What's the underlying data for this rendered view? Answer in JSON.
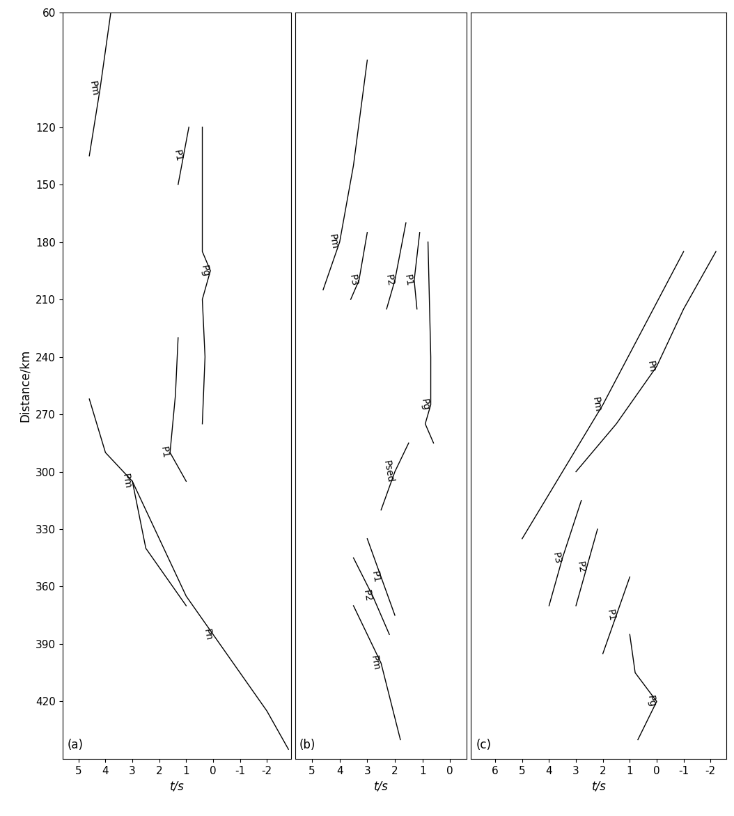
{
  "chart_data": [
    {
      "type": "line",
      "title": "(a)",
      "xlabel": "t/s",
      "ylabel": "Distance/km",
      "xlim": [
        5.6,
        -2.9
      ],
      "ylim": [
        450,
        60
      ],
      "xticks": [
        5,
        4,
        3,
        2,
        1,
        0,
        -1,
        -2
      ],
      "yticks": [
        60,
        120,
        150,
        180,
        210,
        240,
        270,
        300,
        330,
        360,
        390,
        420
      ],
      "tick_labels": true,
      "color": "#000000",
      "series": [
        {
          "name": "Pm",
          "x": [
            3.8,
            4.2,
            4.6
          ],
          "values": [
            60,
            100,
            135
          ]
        },
        {
          "name": "P1",
          "x": [
            0.9,
            1.1,
            1.3
          ],
          "values": [
            120,
            135,
            150
          ]
        },
        {
          "name": "Pg",
          "x": [
            0.4,
            0.4,
            0.4,
            0.1,
            0.4,
            0.3,
            0.4
          ],
          "values": [
            120,
            160,
            185,
            195,
            210,
            240,
            275
          ]
        },
        {
          "name": "P1",
          "x": [
            1.3,
            1.4,
            1.6,
            1.0
          ],
          "values": [
            230,
            260,
            290,
            305
          ]
        },
        {
          "name": "Pm",
          "x": [
            4.6,
            4.0,
            3.0,
            2.5,
            1.0
          ],
          "values": [
            262,
            290,
            305,
            340,
            370
          ]
        },
        {
          "name": "Pn",
          "x": [
            3.0,
            2.0,
            1.0,
            0.0,
            -1.0,
            -2.0,
            -2.8
          ],
          "values": [
            305,
            335,
            365,
            385,
            405,
            425,
            445
          ]
        }
      ]
    },
    {
      "type": "line",
      "title": "(b)",
      "xlabel": "t/s",
      "xlim": [
        5.6,
        -0.6
      ],
      "ylim": [
        450,
        60
      ],
      "xticks": [
        5,
        4,
        3,
        2,
        1,
        0
      ],
      "yticks": [
        60,
        120,
        150,
        180,
        210,
        240,
        270,
        300,
        330,
        360,
        390,
        420
      ],
      "tick_labels": "x",
      "color": "#000000",
      "series": [
        {
          "name": "Pm",
          "x": [
            3.0,
            3.5,
            4.0,
            4.6
          ],
          "values": [
            85,
            140,
            180,
            205
          ]
        },
        {
          "name": "P3",
          "x": [
            3.0,
            3.3,
            3.6
          ],
          "values": [
            175,
            200,
            210
          ]
        },
        {
          "name": "P2",
          "x": [
            1.6,
            2.0,
            2.3
          ],
          "values": [
            170,
            200,
            215
          ]
        },
        {
          "name": "P1",
          "x": [
            1.1,
            1.3,
            1.2
          ],
          "values": [
            175,
            200,
            215
          ]
        },
        {
          "name": "Pg",
          "x": [
            0.8,
            0.7,
            0.7,
            0.9,
            0.6
          ],
          "values": [
            180,
            240,
            265,
            275,
            285
          ]
        },
        {
          "name": "Psed",
          "x": [
            1.5,
            2.0,
            2.5
          ],
          "values": [
            285,
            300,
            320
          ]
        },
        {
          "name": "P1",
          "x": [
            3.0,
            2.5,
            2.0
          ],
          "values": [
            335,
            355,
            375
          ]
        },
        {
          "name": "P2",
          "x": [
            3.5,
            2.8,
            2.2
          ],
          "values": [
            345,
            365,
            385
          ]
        },
        {
          "name": "Pm",
          "x": [
            3.5,
            2.5,
            1.8
          ],
          "values": [
            370,
            400,
            440
          ]
        }
      ]
    },
    {
      "type": "line",
      "title": "(c)",
      "xlabel": "t/s",
      "xlim": [
        6.9,
        -2.6
      ],
      "ylim": [
        450,
        60
      ],
      "xticks": [
        6,
        5,
        4,
        3,
        2,
        1,
        0,
        -1,
        -2
      ],
      "yticks": [
        60,
        120,
        150,
        180,
        210,
        240,
        270,
        300,
        330,
        360,
        390,
        420
      ],
      "tick_labels": "x",
      "color": "#000000",
      "series": [
        {
          "name": "Pm",
          "x": [
            -1.0,
            0.5,
            2.0,
            3.5,
            5.0
          ],
          "values": [
            185,
            225,
            265,
            300,
            335
          ]
        },
        {
          "name": "Pn",
          "x": [
            -2.2,
            -1.0,
            0.0,
            1.5,
            3.0
          ],
          "values": [
            185,
            215,
            245,
            275,
            300
          ]
        },
        {
          "name": "P3",
          "x": [
            2.8,
            3.5,
            4.0
          ],
          "values": [
            315,
            345,
            370
          ]
        },
        {
          "name": "P2",
          "x": [
            2.2,
            2.6,
            3.0
          ],
          "values": [
            330,
            350,
            370
          ]
        },
        {
          "name": "P1",
          "x": [
            1.0,
            1.5,
            2.0
          ],
          "values": [
            355,
            375,
            395
          ]
        },
        {
          "name": "Pg",
          "x": [
            1.0,
            0.8,
            0.0,
            0.7
          ],
          "values": [
            385,
            405,
            420,
            440
          ]
        }
      ]
    }
  ]
}
